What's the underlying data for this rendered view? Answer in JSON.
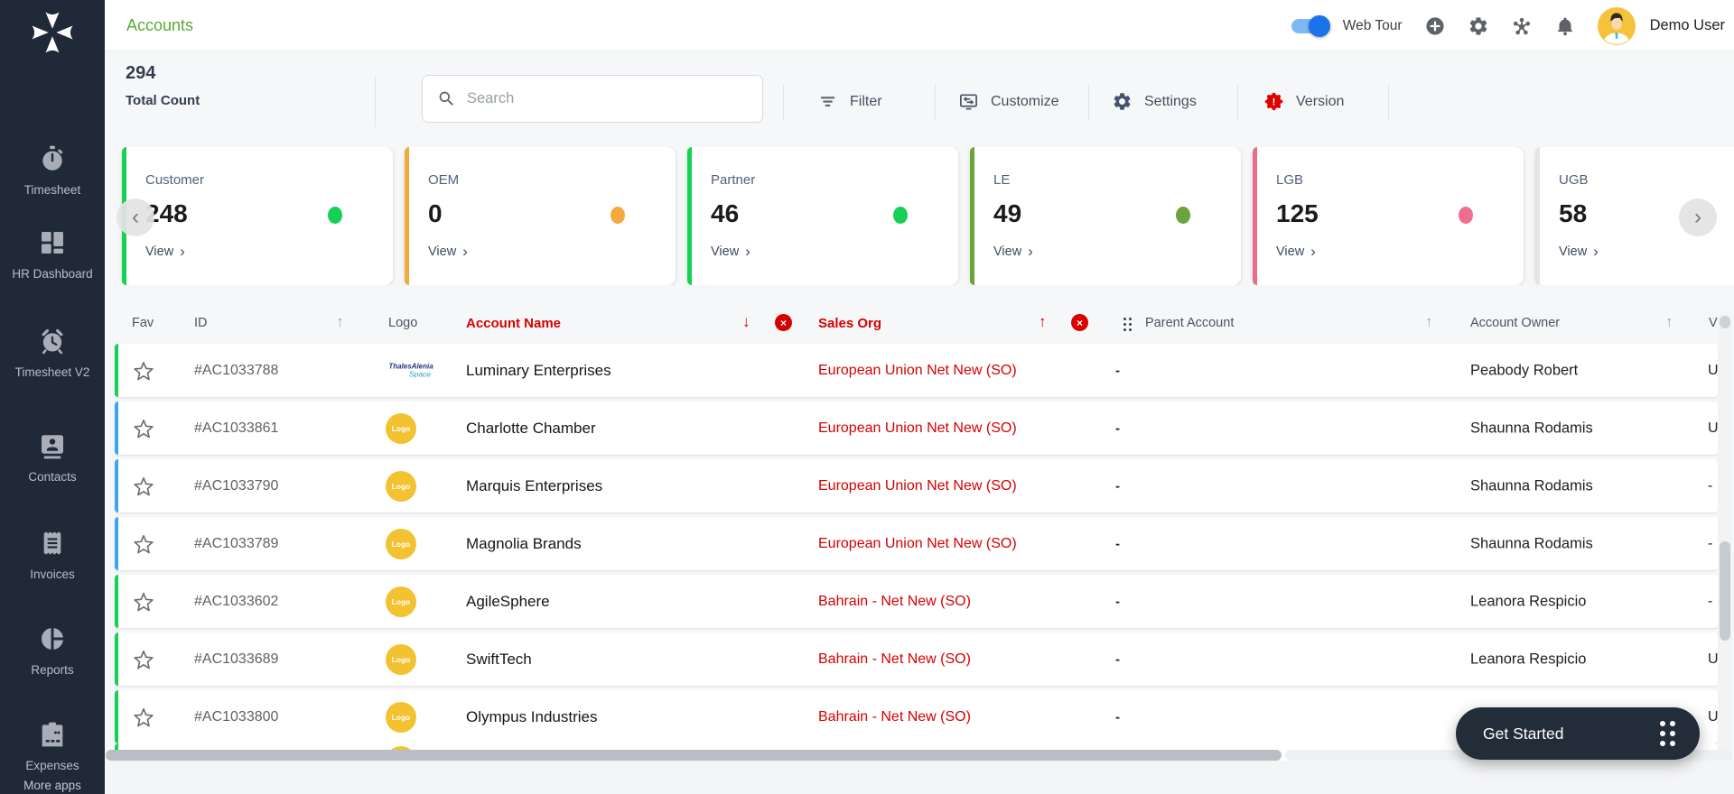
{
  "sidebar": {
    "items": [
      {
        "label": "Timesheet",
        "icon": "stopwatch-icon"
      },
      {
        "label": "HR Dashboard",
        "icon": "dashboard-icon"
      },
      {
        "label": "Timesheet V2",
        "icon": "alarm-clock-icon"
      },
      {
        "label": "Contacts",
        "icon": "contact-card-icon"
      },
      {
        "label": "Invoices",
        "icon": "invoice-icon"
      },
      {
        "label": "Reports",
        "icon": "pie-chart-icon"
      },
      {
        "label": "Expenses",
        "icon": "wallet-icon"
      }
    ],
    "more_apps_label": "More apps"
  },
  "header": {
    "title": "Accounts",
    "web_tour_label": "Web Tour",
    "web_tour_on": true,
    "user_name": "Demo User"
  },
  "toolbar": {
    "count": "294",
    "count_label": "Total Count",
    "search_placeholder": "Search",
    "filter_label": "Filter",
    "customize_label": "Customize",
    "settings_label": "Settings",
    "version_label": "Version",
    "version_mark": "!"
  },
  "cards": {
    "view_label": "View",
    "items": [
      {
        "label": "Customer",
        "value": "248",
        "accent": "#14d254",
        "dot": "#16d054"
      },
      {
        "label": "OEM",
        "value": "0",
        "accent": "#f6a93b",
        "dot": "#f6a93b"
      },
      {
        "label": "Partner",
        "value": "46",
        "accent": "#14d254",
        "dot": "#16d054"
      },
      {
        "label": "LE",
        "value": "49",
        "accent": "#69a53a",
        "dot": "#6aa43a"
      },
      {
        "label": "LGB",
        "value": "125",
        "accent": "#ea6d89",
        "dot": "#ee6e8e"
      },
      {
        "label": "UGB",
        "value": "58",
        "accent": "#e3e5e8",
        "dot": ""
      }
    ]
  },
  "table": {
    "headers": {
      "fav": "Fav",
      "id": "ID",
      "logo": "Logo",
      "name": "Account Name",
      "sales": "Sales Org",
      "parent": "Parent Account",
      "owner": "Account Owner",
      "last_partial": "V"
    },
    "generic_logo_text": "Logo",
    "thales_logo_line1": "ThalesAlenia",
    "thales_logo_line2": "Space",
    "rows": [
      {
        "id": "#AC1033788",
        "logo": "thales",
        "name": "Luminary Enterprises",
        "sales": "European Union Net New (SO)",
        "parent": "-",
        "owner": "Peabody Robert",
        "last": "U",
        "border": "#12d155"
      },
      {
        "id": "#AC1033861",
        "logo": "generic",
        "name": "Charlotte Chamber",
        "sales": "European Union Net New (SO)",
        "parent": "-",
        "owner": "Shaunna Rodamis",
        "last": "U",
        "border": "#3da5f5"
      },
      {
        "id": "#AC1033790",
        "logo": "generic",
        "name": "Marquis Enterprises",
        "sales": "European Union Net New (SO)",
        "parent": "-",
        "owner": "Shaunna Rodamis",
        "last": "-",
        "border": "#3da5f5"
      },
      {
        "id": "#AC1033789",
        "logo": "generic",
        "name": "Magnolia Brands",
        "sales": "European Union Net New (SO)",
        "parent": "-",
        "owner": "Shaunna Rodamis",
        "last": "-",
        "border": "#3da5f5"
      },
      {
        "id": "#AC1033602",
        "logo": "generic",
        "name": "AgileSphere",
        "sales": "Bahrain - Net New (SO)",
        "parent": "-",
        "owner": "Leanora Respicio",
        "last": "-",
        "border": "#12d155"
      },
      {
        "id": "#AC1033689",
        "logo": "generic",
        "name": "SwiftTech",
        "sales": "Bahrain - Net New (SO)",
        "parent": "-",
        "owner": "Leanora Respicio",
        "last": "U",
        "border": "#12d155"
      },
      {
        "id": "#AC1033800",
        "logo": "generic",
        "name": "Olympus Industries",
        "sales": "Bahrain - Net New (SO)",
        "parent": "-",
        "owner": "",
        "last": "U",
        "border": "#12d155"
      }
    ]
  },
  "get_started": {
    "label": "Get Started"
  },
  "glyphs": {
    "chevron_left": "‹",
    "chevron_right": "›",
    "arrow_up": "↑",
    "arrow_down": "↓",
    "clear_x": "×",
    "view_chevron": "›"
  },
  "colors": {
    "accent_green": "#56ad31",
    "alert_red": "#d60000",
    "toggle_blue": "#1a73e8",
    "sidebar_bg": "#202938",
    "row_green": "#12d155",
    "row_blue": "#3da5f5",
    "logo_yellow": "#f2c230"
  }
}
